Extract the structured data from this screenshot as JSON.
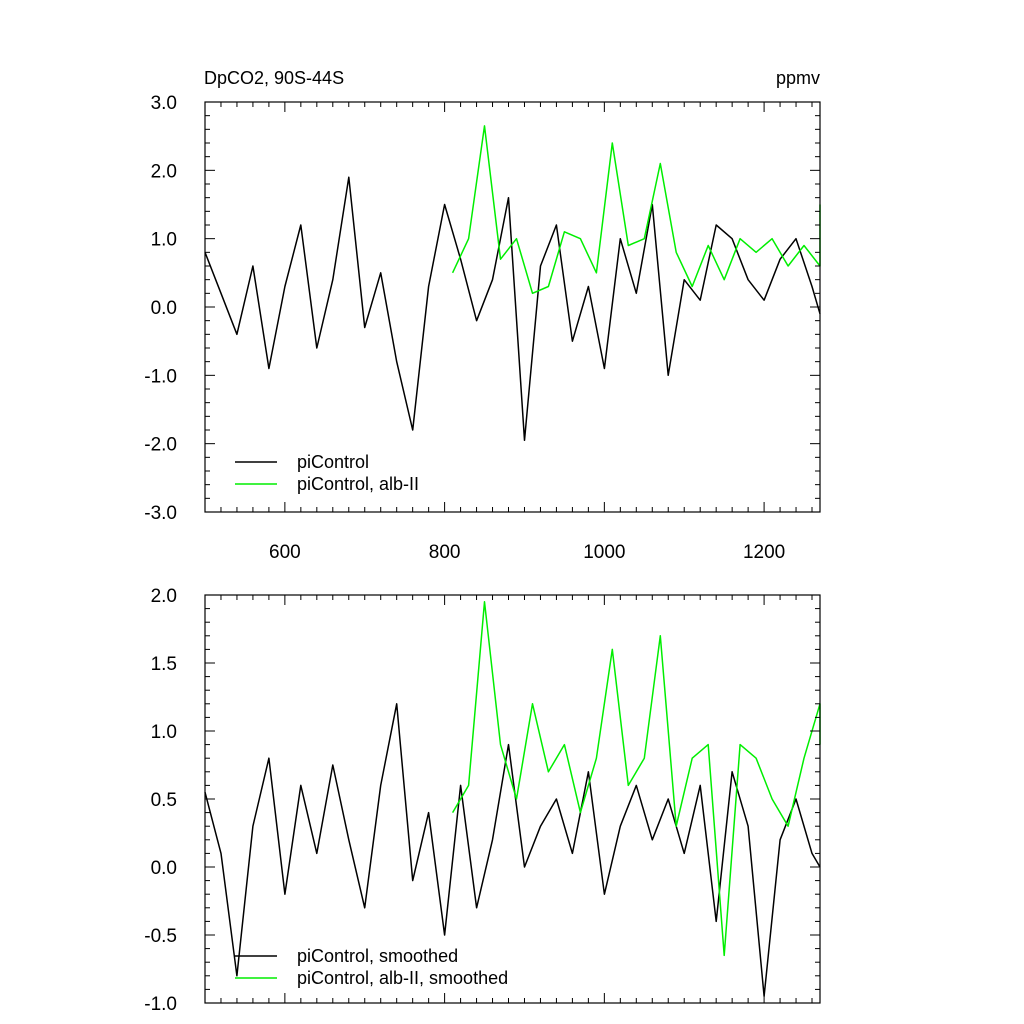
{
  "chart_data": [
    {
      "type": "line",
      "title": "DpCO2, 90S-44S",
      "unit_label": "ppmv",
      "xlim": [
        500,
        1270
      ],
      "ylim": [
        -3.0,
        3.0
      ],
      "xticks": [
        600,
        800,
        1000,
        1200
      ],
      "xtick_labels": [
        "600",
        "800",
        "1000",
        "1200"
      ],
      "yticks": [
        -3.0,
        -2.0,
        -1.0,
        0.0,
        1.0,
        2.0,
        3.0
      ],
      "ytick_labels": [
        "-3.0",
        "-2.0",
        "-1.0",
        "0.0",
        "1.0",
        "2.0",
        "3.0"
      ],
      "legend_position": "bottom-left",
      "grid": false,
      "series": [
        {
          "name": "piControl",
          "color": "#000000",
          "x_start": 500,
          "x_step": 20,
          "values": [
            0.8,
            0.2,
            -0.4,
            0.6,
            -0.9,
            0.3,
            1.2,
            -0.6,
            0.4,
            1.9,
            -0.3,
            0.5,
            -0.8,
            -1.8,
            0.3,
            1.5,
            0.7,
            -0.2,
            0.4,
            1.6,
            -1.95,
            0.6,
            1.2,
            -0.5,
            0.3,
            -0.9,
            1.0,
            0.2,
            1.5,
            -1.0,
            0.4,
            0.1,
            1.2,
            1.0,
            0.4,
            0.1,
            0.7,
            1.0,
            0.3,
            -0.1
          ]
        },
        {
          "name": "piControl, alb-II",
          "color": "#00ee00",
          "x_start": 810,
          "x_step": 20,
          "values": [
            0.5,
            1.0,
            2.65,
            0.7,
            1.0,
            0.2,
            0.3,
            1.1,
            1.0,
            0.5,
            2.4,
            0.9,
            1.0,
            2.1,
            0.8,
            0.3,
            0.9,
            0.4,
            1.0,
            0.8,
            1.0,
            0.6,
            0.9,
            0.6,
            1.5
          ]
        }
      ]
    },
    {
      "type": "line",
      "xlim": [
        500,
        1270
      ],
      "ylim": [
        -1.0,
        2.0
      ],
      "xticks": [
        600,
        800,
        1000,
        1200
      ],
      "yticks": [
        -1.0,
        -0.5,
        0.0,
        0.5,
        1.0,
        1.5,
        2.0
      ],
      "ytick_labels": [
        "-1.0",
        "-0.5",
        "0.0",
        "0.5",
        "1.0",
        "1.5",
        "2.0"
      ],
      "legend_position": "bottom-left",
      "grid": false,
      "series": [
        {
          "name": "piControl, smoothed",
          "color": "#000000",
          "x_start": 500,
          "x_step": 20,
          "values": [
            0.55,
            0.1,
            -0.8,
            0.3,
            0.8,
            -0.2,
            0.6,
            0.1,
            0.75,
            0.2,
            -0.3,
            0.6,
            1.2,
            -0.1,
            0.4,
            -0.5,
            0.6,
            -0.3,
            0.2,
            0.9,
            0.0,
            0.3,
            0.5,
            0.1,
            0.7,
            -0.2,
            0.3,
            0.6,
            0.2,
            0.5,
            0.1,
            0.6,
            -0.4,
            0.7,
            0.3,
            -0.95,
            0.2,
            0.5,
            0.1,
            0.0
          ]
        },
        {
          "name": "piControl, alb-II, smoothed",
          "color": "#00ee00",
          "x_start": 810,
          "x_step": 20,
          "values": [
            0.4,
            0.6,
            1.95,
            0.9,
            0.5,
            1.2,
            0.7,
            0.9,
            0.4,
            0.8,
            1.6,
            0.6,
            0.8,
            1.7,
            0.3,
            0.8,
            0.9,
            -0.65,
            0.9,
            0.8,
            0.5,
            0.3,
            0.8,
            1.2,
            0.9
          ]
        }
      ]
    }
  ]
}
